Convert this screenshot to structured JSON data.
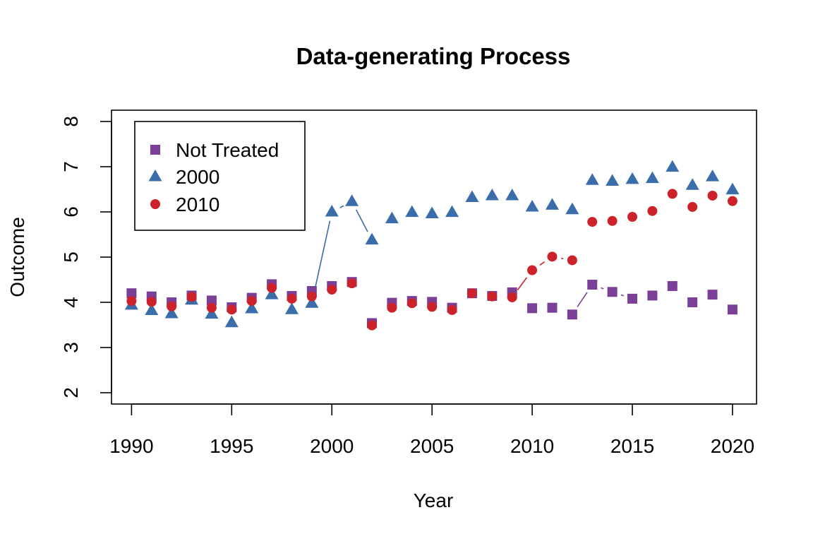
{
  "chart_data": {
    "type": "scatter",
    "title": "Data-generating Process",
    "xlabel": "Year",
    "ylabel": "Outcome",
    "xlim": [
      1989,
      2021.2
    ],
    "ylim": [
      1.75,
      8.25
    ],
    "x_ticks": [
      "1990",
      "1995",
      "2000",
      "2005",
      "2010",
      "2015",
      "2020"
    ],
    "y_ticks": [
      "2",
      "3",
      "4",
      "5",
      "6",
      "7",
      "8"
    ],
    "grid": false,
    "legend_position": "top-left",
    "x": [
      1990,
      1991,
      1992,
      1993,
      1994,
      1995,
      1996,
      1997,
      1998,
      1999,
      2000,
      2001,
      2002,
      2003,
      2004,
      2005,
      2006,
      2007,
      2008,
      2009,
      2010,
      2011,
      2012,
      2013,
      2014,
      2015,
      2016,
      2017,
      2018,
      2019,
      2020
    ],
    "series": [
      {
        "name": "Not Treated",
        "marker": "square",
        "color": "#7B3F98",
        "treatment_year": 2013,
        "values": [
          4.2,
          4.13,
          4.0,
          4.15,
          4.04,
          3.89,
          4.1,
          4.4,
          4.14,
          4.25,
          4.36,
          4.45,
          3.54,
          3.99,
          4.03,
          4.01,
          3.88,
          4.2,
          4.14,
          4.22,
          3.87,
          3.88,
          3.73,
          4.39,
          4.23,
          4.08,
          4.15,
          4.36,
          4.0,
          4.17,
          3.84
        ]
      },
      {
        "name": "2000",
        "marker": "triangle",
        "color": "#3A6DAA",
        "treatment_year": 2000,
        "values": [
          3.94,
          3.82,
          3.75,
          4.05,
          3.74,
          3.55,
          3.86,
          4.17,
          3.84,
          3.98,
          6.0,
          6.23,
          5.38,
          5.85,
          5.99,
          5.96,
          5.99,
          6.32,
          6.36,
          6.36,
          6.11,
          6.15,
          6.05,
          6.7,
          6.68,
          6.72,
          6.74,
          6.99,
          6.59,
          6.78,
          6.49
        ]
      },
      {
        "name": "2010",
        "marker": "circle",
        "color": "#CC2229",
        "treatment_year": 2010,
        "values": [
          4.03,
          4.01,
          3.91,
          4.12,
          3.88,
          3.84,
          4.03,
          4.32,
          4.08,
          4.13,
          4.28,
          4.42,
          3.49,
          3.88,
          3.98,
          3.9,
          3.83,
          4.2,
          4.13,
          4.11,
          4.71,
          5.01,
          4.93,
          5.78,
          5.8,
          5.89,
          6.02,
          6.4,
          6.11,
          6.36,
          6.24
        ]
      }
    ]
  }
}
